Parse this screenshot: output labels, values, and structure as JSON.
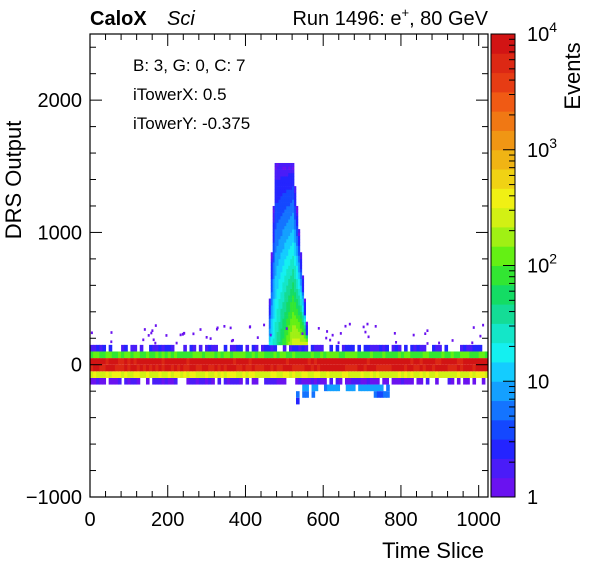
{
  "header": {
    "experiment": "CaloX",
    "detector": "Sci",
    "run": "Run 1496: e",
    "run_sup": "+",
    "run_energy": ", 80 GeV"
  },
  "annotations": [
    "B: 3, G: 0, C: 7",
    "iTowerX: 0.5",
    "iTowerY: -0.375"
  ],
  "chart_data": {
    "type": "heatmap",
    "xlabel": "Time Slice",
    "ylabel": "DRS Output",
    "zlabel": "Events",
    "xlim": [
      0,
      1024
    ],
    "ylim": [
      -1000,
      2500
    ],
    "zlim": [
      1,
      10000
    ],
    "z_log_scale": true,
    "grid": false,
    "x_ticks": [
      0,
      200,
      400,
      600,
      800,
      1000
    ],
    "x_tick_labels": [
      "0",
      "200",
      "400",
      "600",
      "800",
      "1000"
    ],
    "y_ticks": [
      -1000,
      0,
      1000,
      2000
    ],
    "y_tick_labels": [
      "−1000",
      "0",
      "1000",
      "2000"
    ],
    "z_tick_labels": [
      {
        "value": 1,
        "base": "1",
        "exp": ""
      },
      {
        "value": 10,
        "base": "10",
        "exp": ""
      },
      {
        "value": 100,
        "base": "10",
        "exp": "2"
      },
      {
        "value": 1000,
        "base": "10",
        "exp": "3"
      },
      {
        "value": 10000,
        "base": "10",
        "exp": "4"
      }
    ],
    "colorbar_colors": [
      "#6a12f0",
      "#4a1cf8",
      "#2424ff",
      "#1448ff",
      "#1474ff",
      "#14a0ff",
      "#14ccff",
      "#14f0f0",
      "#14e6c8",
      "#14dc96",
      "#14dc64",
      "#32e632",
      "#64f014",
      "#a0f014",
      "#d2f014",
      "#f0f014",
      "#f0d214",
      "#f0b414",
      "#f09614",
      "#f07814",
      "#f05a14",
      "#e63c14",
      "#dc2814",
      "#d21414"
    ],
    "bands": [
      {
        "x_range": [
          0,
          1024
        ],
        "y_range": [
          -150,
          -100
        ],
        "level": 0.03
      },
      {
        "x_range": [
          0,
          1024
        ],
        "y_range": [
          -100,
          -50
        ],
        "level": 0.62
      },
      {
        "x_range": [
          0,
          1024
        ],
        "y_range": [
          -50,
          0
        ],
        "level": 0.96
      },
      {
        "x_range": [
          0,
          1024
        ],
        "y_range": [
          0,
          50
        ],
        "level": 0.98
      },
      {
        "x_range": [
          0,
          1024
        ],
        "y_range": [
          50,
          100
        ],
        "level": 0.5
      },
      {
        "x_range": [
          0,
          1024
        ],
        "y_range": [
          100,
          150
        ],
        "level": 0.08
      }
    ],
    "pulse": {
      "x_rise": [
        455,
        475
      ],
      "x_peak": [
        475,
        520
      ],
      "x_fall_end": 560,
      "y_top": 1520,
      "core_level": 0.55
    },
    "undershoot": {
      "x_range": [
        530,
        770
      ],
      "y_range": [
        -300,
        -150
      ],
      "level": 0.2
    }
  }
}
